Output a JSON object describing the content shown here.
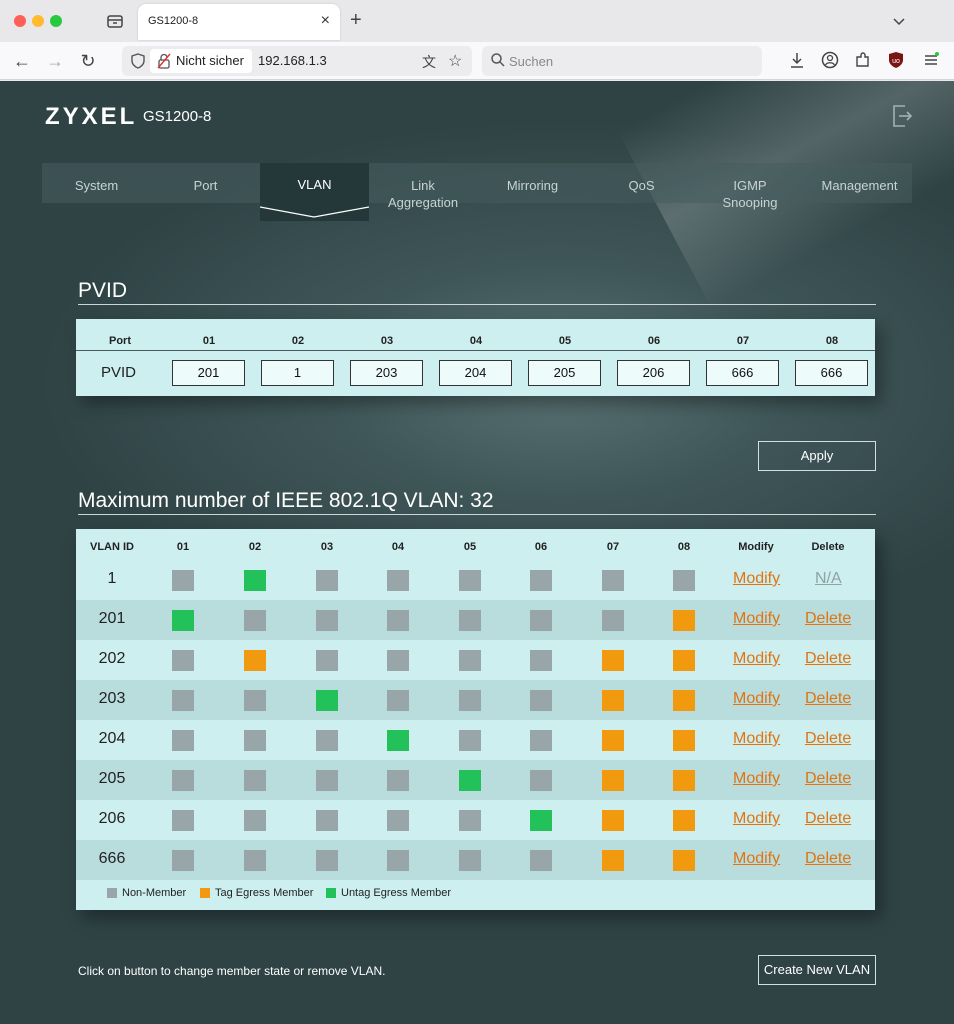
{
  "browser": {
    "tab_title": "GS1200-8",
    "security_label": "Nicht sicher",
    "url": "192.168.1.3",
    "search_placeholder": "Suchen"
  },
  "header": {
    "brand": "ZYXEL",
    "model": "GS1200-8"
  },
  "menu": [
    {
      "label": "System"
    },
    {
      "label": "Port"
    },
    {
      "label": "VLAN"
    },
    {
      "label": "Link Aggregation"
    },
    {
      "label": "Mirroring"
    },
    {
      "label": "QoS"
    },
    {
      "label": "IGMP Snooping"
    },
    {
      "label": "Management"
    }
  ],
  "active_menu": "VLAN",
  "pvid": {
    "title": "PVID",
    "col_label": "Port",
    "row_label": "PVID",
    "ports": [
      "01",
      "02",
      "03",
      "04",
      "05",
      "06",
      "07",
      "08"
    ],
    "values": [
      "201",
      "1",
      "203",
      "204",
      "205",
      "206",
      "666",
      "666"
    ]
  },
  "apply_label": "Apply",
  "vlan": {
    "title": "Maximum number of IEEE 802.1Q VLAN: 32",
    "headers": [
      "VLAN ID",
      "01",
      "02",
      "03",
      "04",
      "05",
      "06",
      "07",
      "08",
      "Modify",
      "Delete"
    ],
    "rows": [
      {
        "id": "1",
        "ports": [
          "N",
          "U",
          "N",
          "N",
          "N",
          "N",
          "N",
          "N"
        ],
        "modify": "Modify",
        "delete": "N/A"
      },
      {
        "id": "201",
        "ports": [
          "U",
          "N",
          "N",
          "N",
          "N",
          "N",
          "N",
          "T"
        ],
        "modify": "Modify",
        "delete": "Delete"
      },
      {
        "id": "202",
        "ports": [
          "N",
          "T",
          "N",
          "N",
          "N",
          "N",
          "T",
          "T"
        ],
        "modify": "Modify",
        "delete": "Delete"
      },
      {
        "id": "203",
        "ports": [
          "N",
          "N",
          "U",
          "N",
          "N",
          "N",
          "T",
          "T"
        ],
        "modify": "Modify",
        "delete": "Delete"
      },
      {
        "id": "204",
        "ports": [
          "N",
          "N",
          "N",
          "U",
          "N",
          "N",
          "T",
          "T"
        ],
        "modify": "Modify",
        "delete": "Delete"
      },
      {
        "id": "205",
        "ports": [
          "N",
          "N",
          "N",
          "N",
          "U",
          "N",
          "T",
          "T"
        ],
        "modify": "Modify",
        "delete": "Delete"
      },
      {
        "id": "206",
        "ports": [
          "N",
          "N",
          "N",
          "N",
          "N",
          "U",
          "T",
          "T"
        ],
        "modify": "Modify",
        "delete": "Delete"
      },
      {
        "id": "666",
        "ports": [
          "N",
          "N",
          "N",
          "N",
          "N",
          "N",
          "T",
          "T"
        ],
        "modify": "Modify",
        "delete": "Delete"
      }
    ],
    "legend": [
      {
        "key": "N",
        "label": "Non-Member",
        "color": "#98a6a9"
      },
      {
        "key": "T",
        "label": "Tag Egress Member",
        "color": "#f29a0f"
      },
      {
        "key": "U",
        "label": "Untag Egress Member",
        "color": "#23c15a"
      }
    ]
  },
  "hint": "Click on button to change member state or remove VLAN.",
  "create_label": "Create New VLAN",
  "colors": {
    "link": "#e07410",
    "na": "#8fa2a4"
  }
}
